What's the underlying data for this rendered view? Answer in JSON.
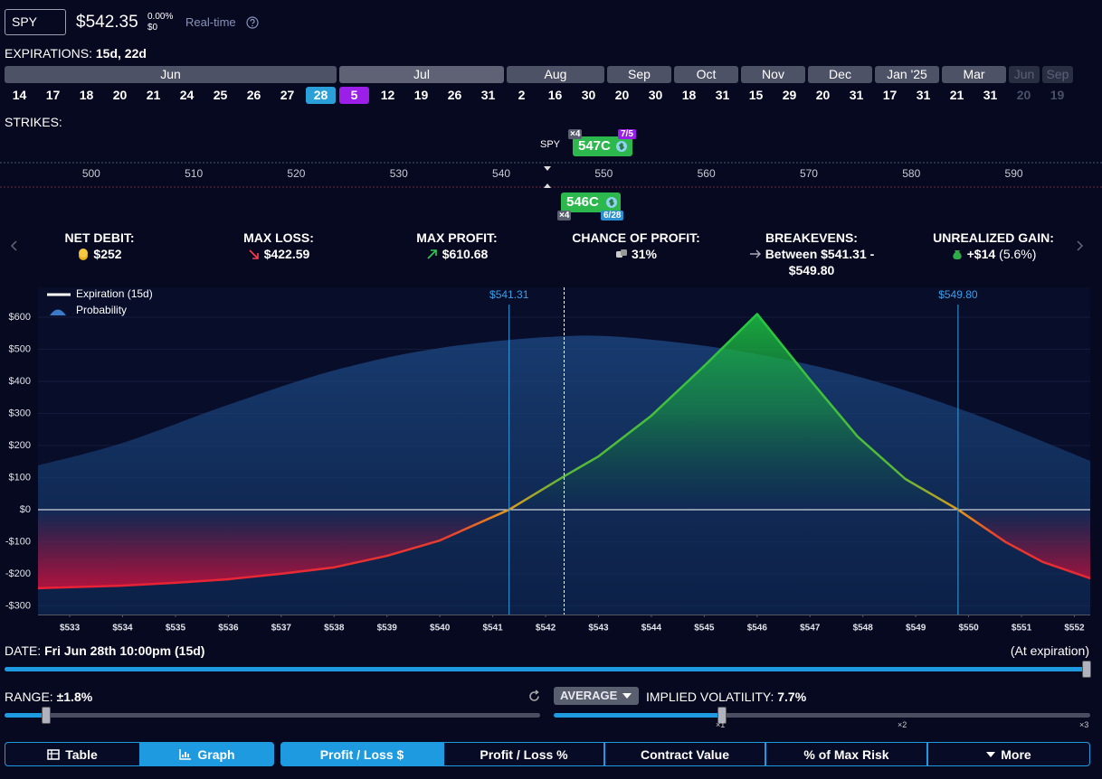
{
  "header": {
    "symbol": "SPY",
    "price": "$542.35",
    "change_pct": "0.00%",
    "change_abs": "$0",
    "mode": "Real-time"
  },
  "expirations": {
    "label": "EXPIRATIONS:",
    "value": "15d, 22d",
    "months": [
      {
        "name": "Jun",
        "days": [
          "14",
          "17",
          "18",
          "20",
          "21",
          "24",
          "25",
          "26",
          "27",
          "28"
        ],
        "selected": "28",
        "selected_color": "#2a9fd8"
      },
      {
        "name": "Jul",
        "days": [
          "5",
          "12",
          "19",
          "26",
          "31"
        ],
        "selected": "5",
        "selected_color": "#9b1fe8"
      },
      {
        "name": "Aug",
        "days": [
          "2",
          "16",
          "30"
        ]
      },
      {
        "name": "Sep",
        "days": [
          "20",
          "30"
        ]
      },
      {
        "name": "Oct",
        "days": [
          "18",
          "31"
        ]
      },
      {
        "name": "Nov",
        "days": [
          "15",
          "29"
        ]
      },
      {
        "name": "Dec",
        "days": [
          "20",
          "31"
        ]
      },
      {
        "name": "Jan '25",
        "days": [
          "17",
          "31"
        ]
      },
      {
        "name": "Mar",
        "days": [
          "21",
          "31"
        ]
      },
      {
        "name": "Jun",
        "days": [
          "20"
        ],
        "faded": true
      },
      {
        "name": "Sep",
        "days": [
          "19"
        ],
        "faded": true
      }
    ]
  },
  "strikes": {
    "label": "STRIKES:",
    "underlying": "SPY",
    "ticks": [
      500,
      510,
      520,
      530,
      540,
      550,
      560,
      570,
      580,
      590
    ],
    "xlim": [
      491.1,
      598.6
    ],
    "long_leg": {
      "label": "547C",
      "qty": "×4",
      "expiry": "7/5"
    },
    "short_leg": {
      "label": "546C",
      "qty": "×4",
      "expiry": "6/28"
    }
  },
  "stats": [
    {
      "label": "NET DEBIT:",
      "value": "$252"
    },
    {
      "label": "MAX LOSS:",
      "value": "$422.59"
    },
    {
      "label": "MAX PROFIT:",
      "value": "$610.68"
    },
    {
      "label": "CHANCE OF PROFIT:",
      "value": "31%"
    },
    {
      "label": "BREAKEVENS:",
      "value": "Between $541.31 - $549.80"
    },
    {
      "label": "UNREALIZED GAIN:",
      "value": "+$14",
      "extra": "(5.6%)"
    }
  ],
  "chart_data": {
    "type": "line",
    "xlim": [
      532.4,
      552.3
    ],
    "ylim": [
      -327,
      693
    ],
    "xticks": [
      {
        "value": 533,
        "label": "$533"
      },
      {
        "value": 534,
        "label": "$534"
      },
      {
        "value": 535,
        "label": "$535"
      },
      {
        "value": 536,
        "label": "$536"
      },
      {
        "value": 537,
        "label": "$537"
      },
      {
        "value": 538,
        "label": "$538"
      },
      {
        "value": 539,
        "label": "$539"
      },
      {
        "value": 540,
        "label": "$540"
      },
      {
        "value": 541,
        "label": "$541"
      },
      {
        "value": 542,
        "label": "$542"
      },
      {
        "value": 543,
        "label": "$543"
      },
      {
        "value": 544,
        "label": "$544"
      },
      {
        "value": 545,
        "label": "$545"
      },
      {
        "value": 546,
        "label": "$546"
      },
      {
        "value": 547,
        "label": "$547"
      },
      {
        "value": 548,
        "label": "$548"
      },
      {
        "value": 549,
        "label": "$549"
      },
      {
        "value": 550,
        "label": "$550"
      },
      {
        "value": 551,
        "label": "$551"
      },
      {
        "value": 552,
        "label": "$552"
      }
    ],
    "yticks": [
      {
        "value": 600,
        "label": "$600"
      },
      {
        "value": 500,
        "label": "$500"
      },
      {
        "value": 400,
        "label": "$400"
      },
      {
        "value": 300,
        "label": "$300"
      },
      {
        "value": 200,
        "label": "$200"
      },
      {
        "value": 100,
        "label": "$100"
      },
      {
        "value": 0,
        "label": "$0"
      },
      {
        "value": -100,
        "label": "-$100"
      },
      {
        "value": -200,
        "label": "-$200"
      },
      {
        "value": -300,
        "label": "-$300"
      }
    ],
    "current_price": 542.35,
    "breakevens": [
      {
        "value": 541.31,
        "label": "$541.31"
      },
      {
        "value": 549.8,
        "label": "$549.80"
      }
    ],
    "series": [
      {
        "name": "Probability",
        "color": "#1d4a86",
        "x": [
          532.4,
          534,
          536,
          538,
          540,
          542.35,
          544,
          546,
          548,
          550,
          552.3
        ],
        "values": [
          138,
          208,
          327,
          434,
          504,
          541,
          530,
          485,
          411,
          304,
          152
        ]
      },
      {
        "name": "Expiration (15d)",
        "color": "#ffffff",
        "x": [
          532.4,
          534,
          535,
          536,
          537,
          538,
          539,
          540,
          541.31,
          542.35,
          543,
          544,
          545,
          546,
          547,
          547.9,
          548.8,
          549.8,
          550.7,
          551.4,
          552.3
        ],
        "values": [
          -245,
          -237,
          -228,
          -217,
          -200,
          -180,
          -144,
          -96,
          0,
          104,
          166,
          293,
          448,
          610,
          405,
          228,
          96,
          0,
          -101,
          -163,
          -214
        ]
      }
    ]
  },
  "controls": {
    "date_label": "DATE:",
    "date": "Fri Jun 28th 10:00pm (15d)",
    "date_note": "(At expiration)",
    "range_label": "RANGE:",
    "range": "±1.8%",
    "iv_mode": "AVERAGE",
    "iv_label": "IMPLIED VOLATILITY:",
    "iv": "7.7%",
    "iv_scale": [
      "×1",
      "×2",
      "×3"
    ]
  },
  "tabs": {
    "view": [
      "Table",
      "Graph"
    ],
    "active_view": "Graph",
    "metric": [
      "Profit / Loss $",
      "Profit / Loss %",
      "Contract Value",
      "% of Max Risk",
      "More"
    ],
    "active_metric": "Profit / Loss $"
  }
}
